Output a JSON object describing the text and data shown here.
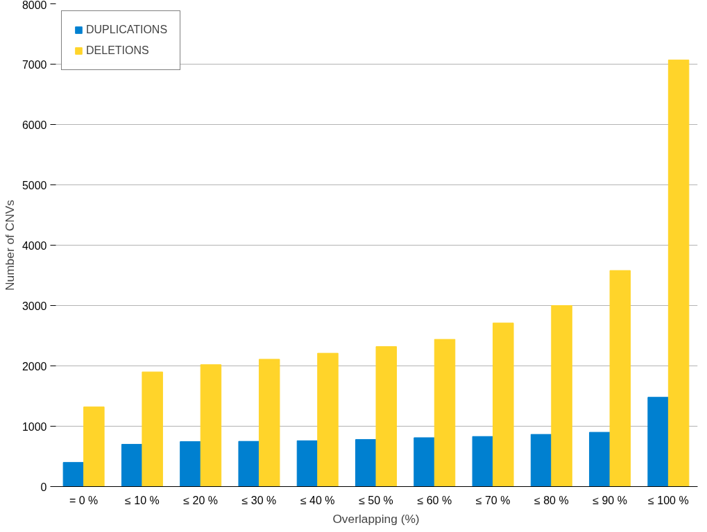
{
  "chart_data": {
    "type": "bar",
    "xlabel": "Overlapping (%)",
    "ylabel": "Number of CNVs",
    "categories": [
      "= 0 %",
      "≤ 10 %",
      "≤ 20 %",
      "≤ 30 %",
      "≤ 40 %",
      "≤ 50 %",
      "≤ 60 %",
      "≤ 70 %",
      "≤ 80 %",
      "≤ 90 %",
      "≤ 100 %"
    ],
    "series": [
      {
        "name": "DUPLICATIONS",
        "color": "#0080d0",
        "values": [
          400,
          700,
          745,
          750,
          760,
          780,
          810,
          830,
          865,
          900,
          1480
        ]
      },
      {
        "name": "DELETIONS",
        "color": "#ffd42a",
        "values": [
          1320,
          1900,
          2020,
          2110,
          2210,
          2320,
          2440,
          2710,
          3000,
          3580,
          7070
        ]
      }
    ],
    "ylim": [
      0,
      8000
    ],
    "yticks": [
      0,
      1000,
      2000,
      3000,
      4000,
      5000,
      6000,
      7000,
      8000
    ],
    "grid": "y",
    "legend": "top left"
  }
}
